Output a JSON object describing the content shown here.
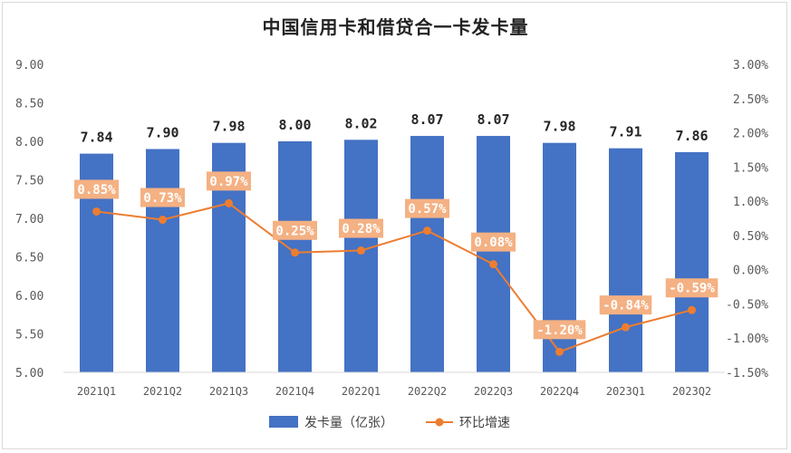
{
  "chart_data": {
    "type": "bar",
    "title": "中国信用卡和借贷合一卡发卡量",
    "categories": [
      "2021Q1",
      "2021Q2",
      "2021Q3",
      "2021Q4",
      "2022Q1",
      "2022Q2",
      "2022Q3",
      "2022Q4",
      "2023Q1",
      "2023Q2"
    ],
    "series": [
      {
        "name": "发卡量（亿张）",
        "kind": "bar",
        "axis": "left",
        "values": [
          7.84,
          7.9,
          7.98,
          8.0,
          8.02,
          8.07,
          8.07,
          7.98,
          7.91,
          7.86
        ],
        "labels": [
          "7.84",
          "7.90",
          "7.98",
          "8.00",
          "8.02",
          "8.07",
          "8.07",
          "7.98",
          "7.91",
          "7.86"
        ],
        "color": "#4472c4"
      },
      {
        "name": "环比增速",
        "kind": "line",
        "axis": "right",
        "values": [
          0.85,
          0.73,
          0.97,
          0.25,
          0.28,
          0.57,
          0.08,
          -1.2,
          -0.84,
          -0.59
        ],
        "labels": [
          "0.85%",
          "0.73%",
          "0.97%",
          "0.25%",
          "0.28%",
          "0.57%",
          "0.08%",
          "-1.20%",
          "-0.84%",
          "-0.59%"
        ],
        "color": "#ed7d31"
      }
    ],
    "left_axis": {
      "ylim": [
        5.0,
        9.0
      ],
      "ticks": [
        "9.00",
        "8.50",
        "8.00",
        "7.50",
        "7.00",
        "6.50",
        "6.00",
        "5.50",
        "5.00"
      ]
    },
    "right_axis": {
      "ylim": [
        -1.5,
        3.0
      ],
      "ticks": [
        "3.00%",
        "2.50%",
        "2.00%",
        "1.50%",
        "1.00%",
        "0.50%",
        "0.00%",
        "-0.50%",
        "-1.00%",
        "-1.50%"
      ]
    },
    "grid": false,
    "legend": "bottom",
    "colors": {
      "bar": "#4472c4",
      "line": "#ed7d31",
      "label_box": "#f4b183"
    }
  }
}
